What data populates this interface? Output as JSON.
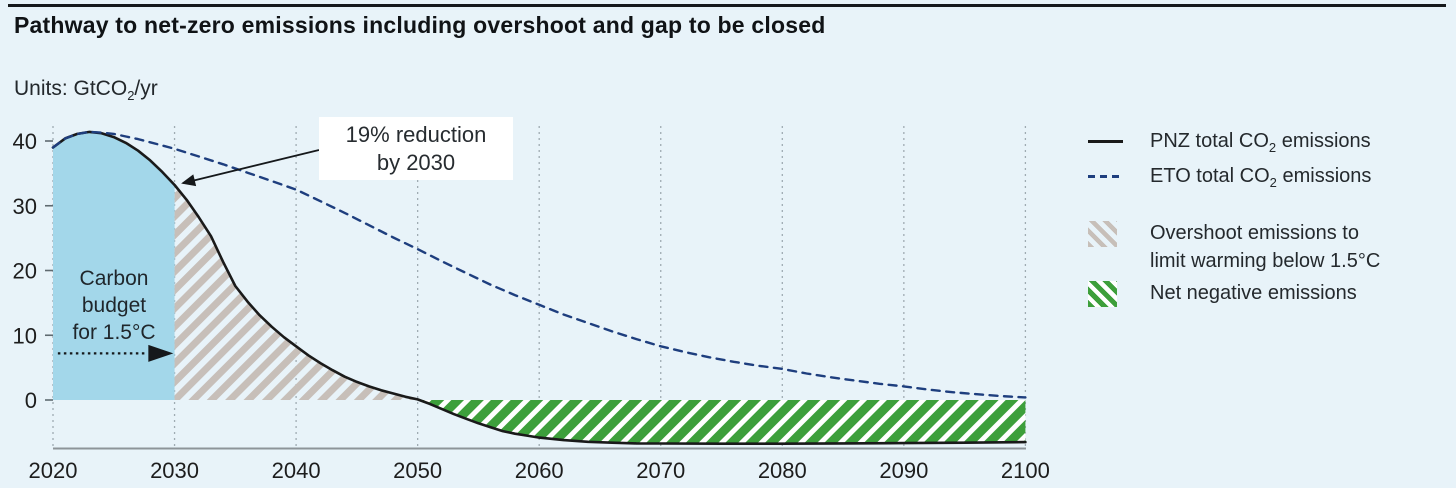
{
  "header": {
    "title": "Pathway to net-zero emissions including overshoot and gap to be closed"
  },
  "units": {
    "pre": "Units: GtCO",
    "sub": "2",
    "post": "/yr"
  },
  "chart_data": {
    "type": "line",
    "title": "Pathway to net-zero emissions including overshoot and gap to be closed",
    "ylabel": "GtCO2/yr",
    "xlim": [
      2020,
      2100
    ],
    "ylim": [
      -8.5,
      43
    ],
    "x_ticks": [
      2020,
      2030,
      2040,
      2050,
      2060,
      2070,
      2080,
      2090,
      2100
    ],
    "y_ticks": [
      0,
      10,
      20,
      30,
      40
    ],
    "grid": "vertical-dotted",
    "legend_position": "right",
    "series": [
      {
        "name": "PNZ total CO2 emissions",
        "style": "solid",
        "color": "#1a1a1a",
        "points": [
          [
            2020,
            39.0
          ],
          [
            2021,
            40.4
          ],
          [
            2022,
            41.1
          ],
          [
            2023,
            41.4
          ],
          [
            2024,
            41.2
          ],
          [
            2025,
            40.6
          ],
          [
            2026,
            39.7
          ],
          [
            2027,
            38.5
          ],
          [
            2028,
            37.0
          ],
          [
            2029,
            35.2
          ],
          [
            2030,
            33.2
          ],
          [
            2031,
            30.9
          ],
          [
            2032,
            28.2
          ],
          [
            2033,
            25.3
          ],
          [
            2034,
            21.3
          ],
          [
            2035,
            17.6
          ],
          [
            2036,
            15.2
          ],
          [
            2037,
            13.1
          ],
          [
            2038,
            11.3
          ],
          [
            2039,
            9.7
          ],
          [
            2040,
            8.3
          ],
          [
            2041,
            6.9
          ],
          [
            2042,
            5.7
          ],
          [
            2043,
            4.6
          ],
          [
            2044,
            3.6
          ],
          [
            2045,
            2.8
          ],
          [
            2046,
            2.1
          ],
          [
            2047,
            1.5
          ],
          [
            2048,
            1.0
          ],
          [
            2049,
            0.5
          ],
          [
            2050,
            0.1
          ],
          [
            2051,
            -0.6
          ],
          [
            2052,
            -1.4
          ],
          [
            2053,
            -2.2
          ],
          [
            2054,
            -2.9
          ],
          [
            2055,
            -3.6
          ],
          [
            2056,
            -4.2
          ],
          [
            2057,
            -4.8
          ],
          [
            2058,
            -5.2
          ],
          [
            2059,
            -5.5
          ],
          [
            2060,
            -5.8
          ],
          [
            2062,
            -6.2
          ],
          [
            2064,
            -6.45
          ],
          [
            2066,
            -6.6
          ],
          [
            2068,
            -6.7
          ],
          [
            2070,
            -6.72
          ],
          [
            2075,
            -6.75
          ],
          [
            2080,
            -6.75
          ],
          [
            2085,
            -6.7
          ],
          [
            2090,
            -6.65
          ],
          [
            2095,
            -6.6
          ],
          [
            2100,
            -6.5
          ]
        ]
      },
      {
        "name": "ETO total CO2 emissions",
        "style": "dashed",
        "color": "#1e3e7e",
        "points": [
          [
            2020,
            39.0
          ],
          [
            2021,
            40.4
          ],
          [
            2022,
            41.1
          ],
          [
            2023,
            41.4
          ],
          [
            2024,
            41.3
          ],
          [
            2025,
            41.1
          ],
          [
            2026,
            40.7
          ],
          [
            2027,
            40.3
          ],
          [
            2028,
            39.8
          ],
          [
            2029,
            39.3
          ],
          [
            2030,
            38.8
          ],
          [
            2032,
            37.6
          ],
          [
            2034,
            36.4
          ],
          [
            2036,
            35.1
          ],
          [
            2038,
            33.8
          ],
          [
            2040,
            32.5
          ],
          [
            2042,
            30.7
          ],
          [
            2044,
            28.9
          ],
          [
            2046,
            27.0
          ],
          [
            2048,
            25.1
          ],
          [
            2050,
            23.3
          ],
          [
            2052,
            21.4
          ],
          [
            2054,
            19.6
          ],
          [
            2056,
            17.8
          ],
          [
            2058,
            16.2
          ],
          [
            2060,
            14.7
          ],
          [
            2062,
            13.2
          ],
          [
            2064,
            11.9
          ],
          [
            2066,
            10.6
          ],
          [
            2068,
            9.4
          ],
          [
            2070,
            8.3
          ],
          [
            2072,
            7.4
          ],
          [
            2074,
            6.6
          ],
          [
            2076,
            5.9
          ],
          [
            2078,
            5.3
          ],
          [
            2080,
            4.8
          ],
          [
            2082,
            4.1
          ],
          [
            2084,
            3.5
          ],
          [
            2086,
            3.0
          ],
          [
            2088,
            2.5
          ],
          [
            2090,
            2.1
          ],
          [
            2092,
            1.6
          ],
          [
            2094,
            1.2
          ],
          [
            2096,
            0.9
          ],
          [
            2098,
            0.6
          ],
          [
            2100,
            0.4
          ]
        ]
      }
    ],
    "areas": [
      {
        "name": "Carbon budget for 1.5°C",
        "series": 0,
        "from": 2020,
        "to": 2030,
        "style": "solid",
        "color": "#a3d7ea"
      },
      {
        "name": "Overshoot emissions to limit warming below 1.5°C",
        "series": 0,
        "from": 2030,
        "to": 2050.2,
        "style": "hatch-gray"
      },
      {
        "name": "Net negative emissions",
        "series": 0,
        "from": 2050.2,
        "to": 2100,
        "style": "hatch-green"
      }
    ],
    "annotations": {
      "reduction": {
        "line1": "19% reduction",
        "line2": "by 2030",
        "target_year": 2030.7,
        "target_value": 33.5
      },
      "budget": {
        "line1": "Carbon",
        "line2": "budget",
        "line3": "for 1.5°C",
        "arrow_value": 7.2,
        "arrow_from_year": 2020.4,
        "arrow_to_year": 2029.9
      }
    },
    "hatch_colors": {
      "overshoot_stripe": "#c7bfb9",
      "net_negative_stripe": "#3d9f3b",
      "net_negative_bg": "#ffffff"
    }
  },
  "legend": {
    "items": [
      {
        "pre": "PNZ total CO",
        "sub": "2",
        "post": " emissions"
      },
      {
        "pre": "ETO total CO",
        "sub": "2",
        "post": " emissions"
      },
      {
        "line1": "Overshoot emissions to",
        "line2": "limit warming below 1.5°C"
      },
      {
        "line1": "Net negative emissions"
      }
    ]
  }
}
